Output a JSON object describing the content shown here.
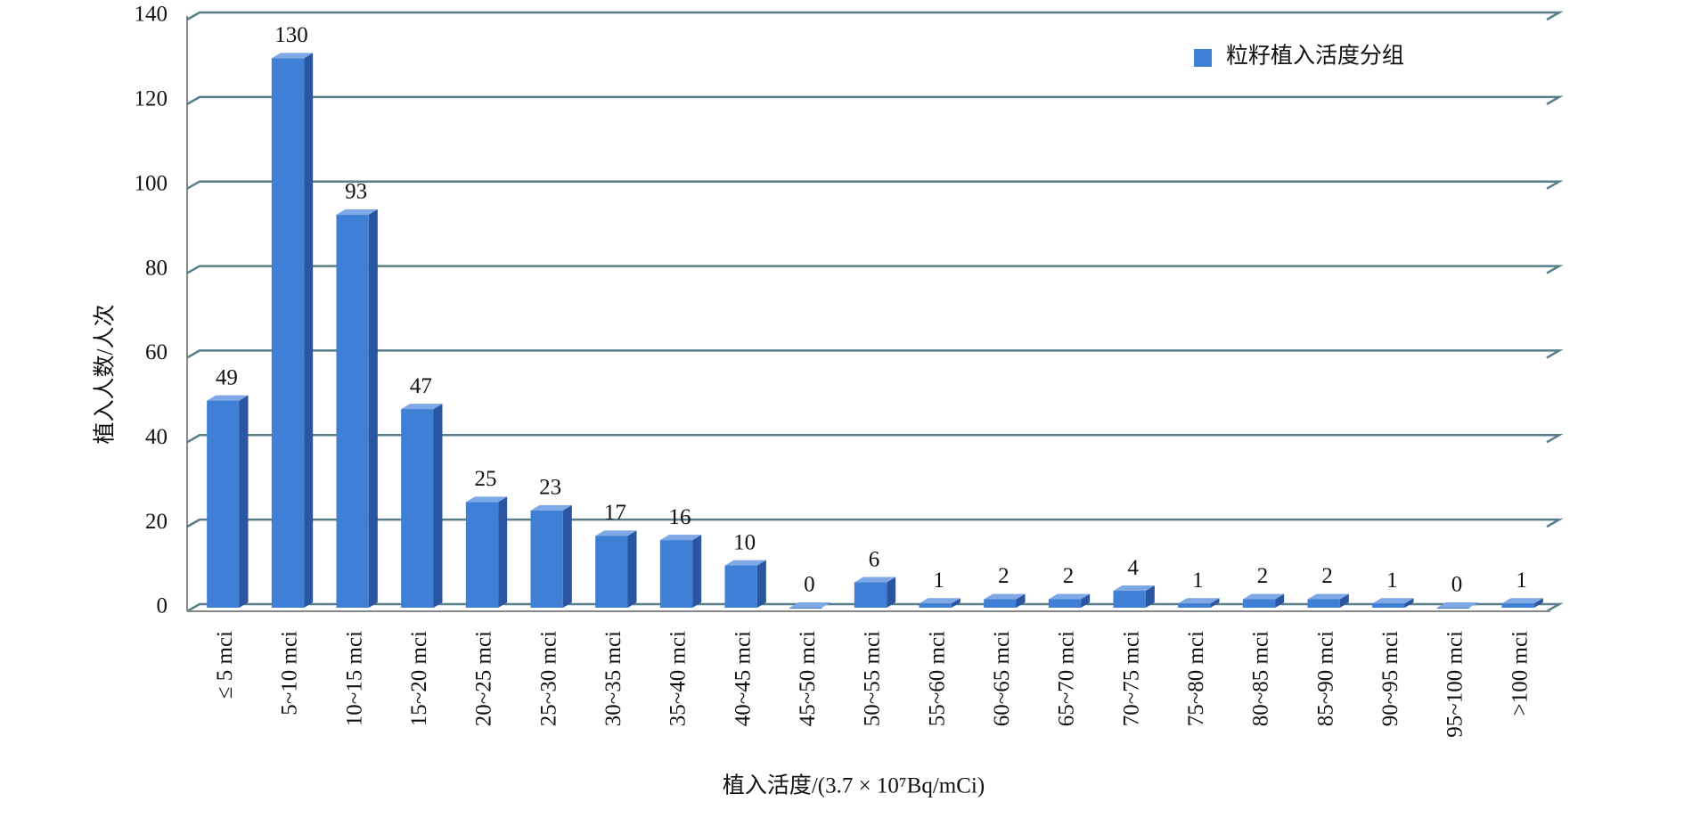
{
  "chart_data": {
    "type": "bar",
    "x_label": "植入活度/(3.7 × 10⁷Bq/mCi)",
    "y_label": "植入人数/人次",
    "categories": [
      "≤ 5 mci",
      "5~10 mci",
      "10~15 mci",
      "15~20 mci",
      "20~25 mci",
      "25~30 mci",
      "30~35 mci",
      "35~40 mci",
      "40~45 mci",
      "45~50 mci",
      "50~55 mci",
      "55~60 mci",
      "60~65 mci",
      "65~70 mci",
      "70~75 mci",
      "75~80 mci",
      "80~85 mci",
      "85~90 mci",
      "90~95 mci",
      "95~100 mci",
      ">100 mci"
    ],
    "series": [
      {
        "name": "粒籽植入活度分组",
        "color": "#3f7fd6",
        "values": [
          49,
          130,
          93,
          47,
          25,
          23,
          17,
          16,
          10,
          0,
          6,
          1,
          2,
          2,
          4,
          1,
          2,
          2,
          1,
          0,
          1
        ]
      }
    ],
    "ylim": [
      0,
      140
    ],
    "yticks": [
      0,
      20,
      40,
      60,
      80,
      100,
      120,
      140
    ],
    "grid": true,
    "legend": "top-right"
  }
}
